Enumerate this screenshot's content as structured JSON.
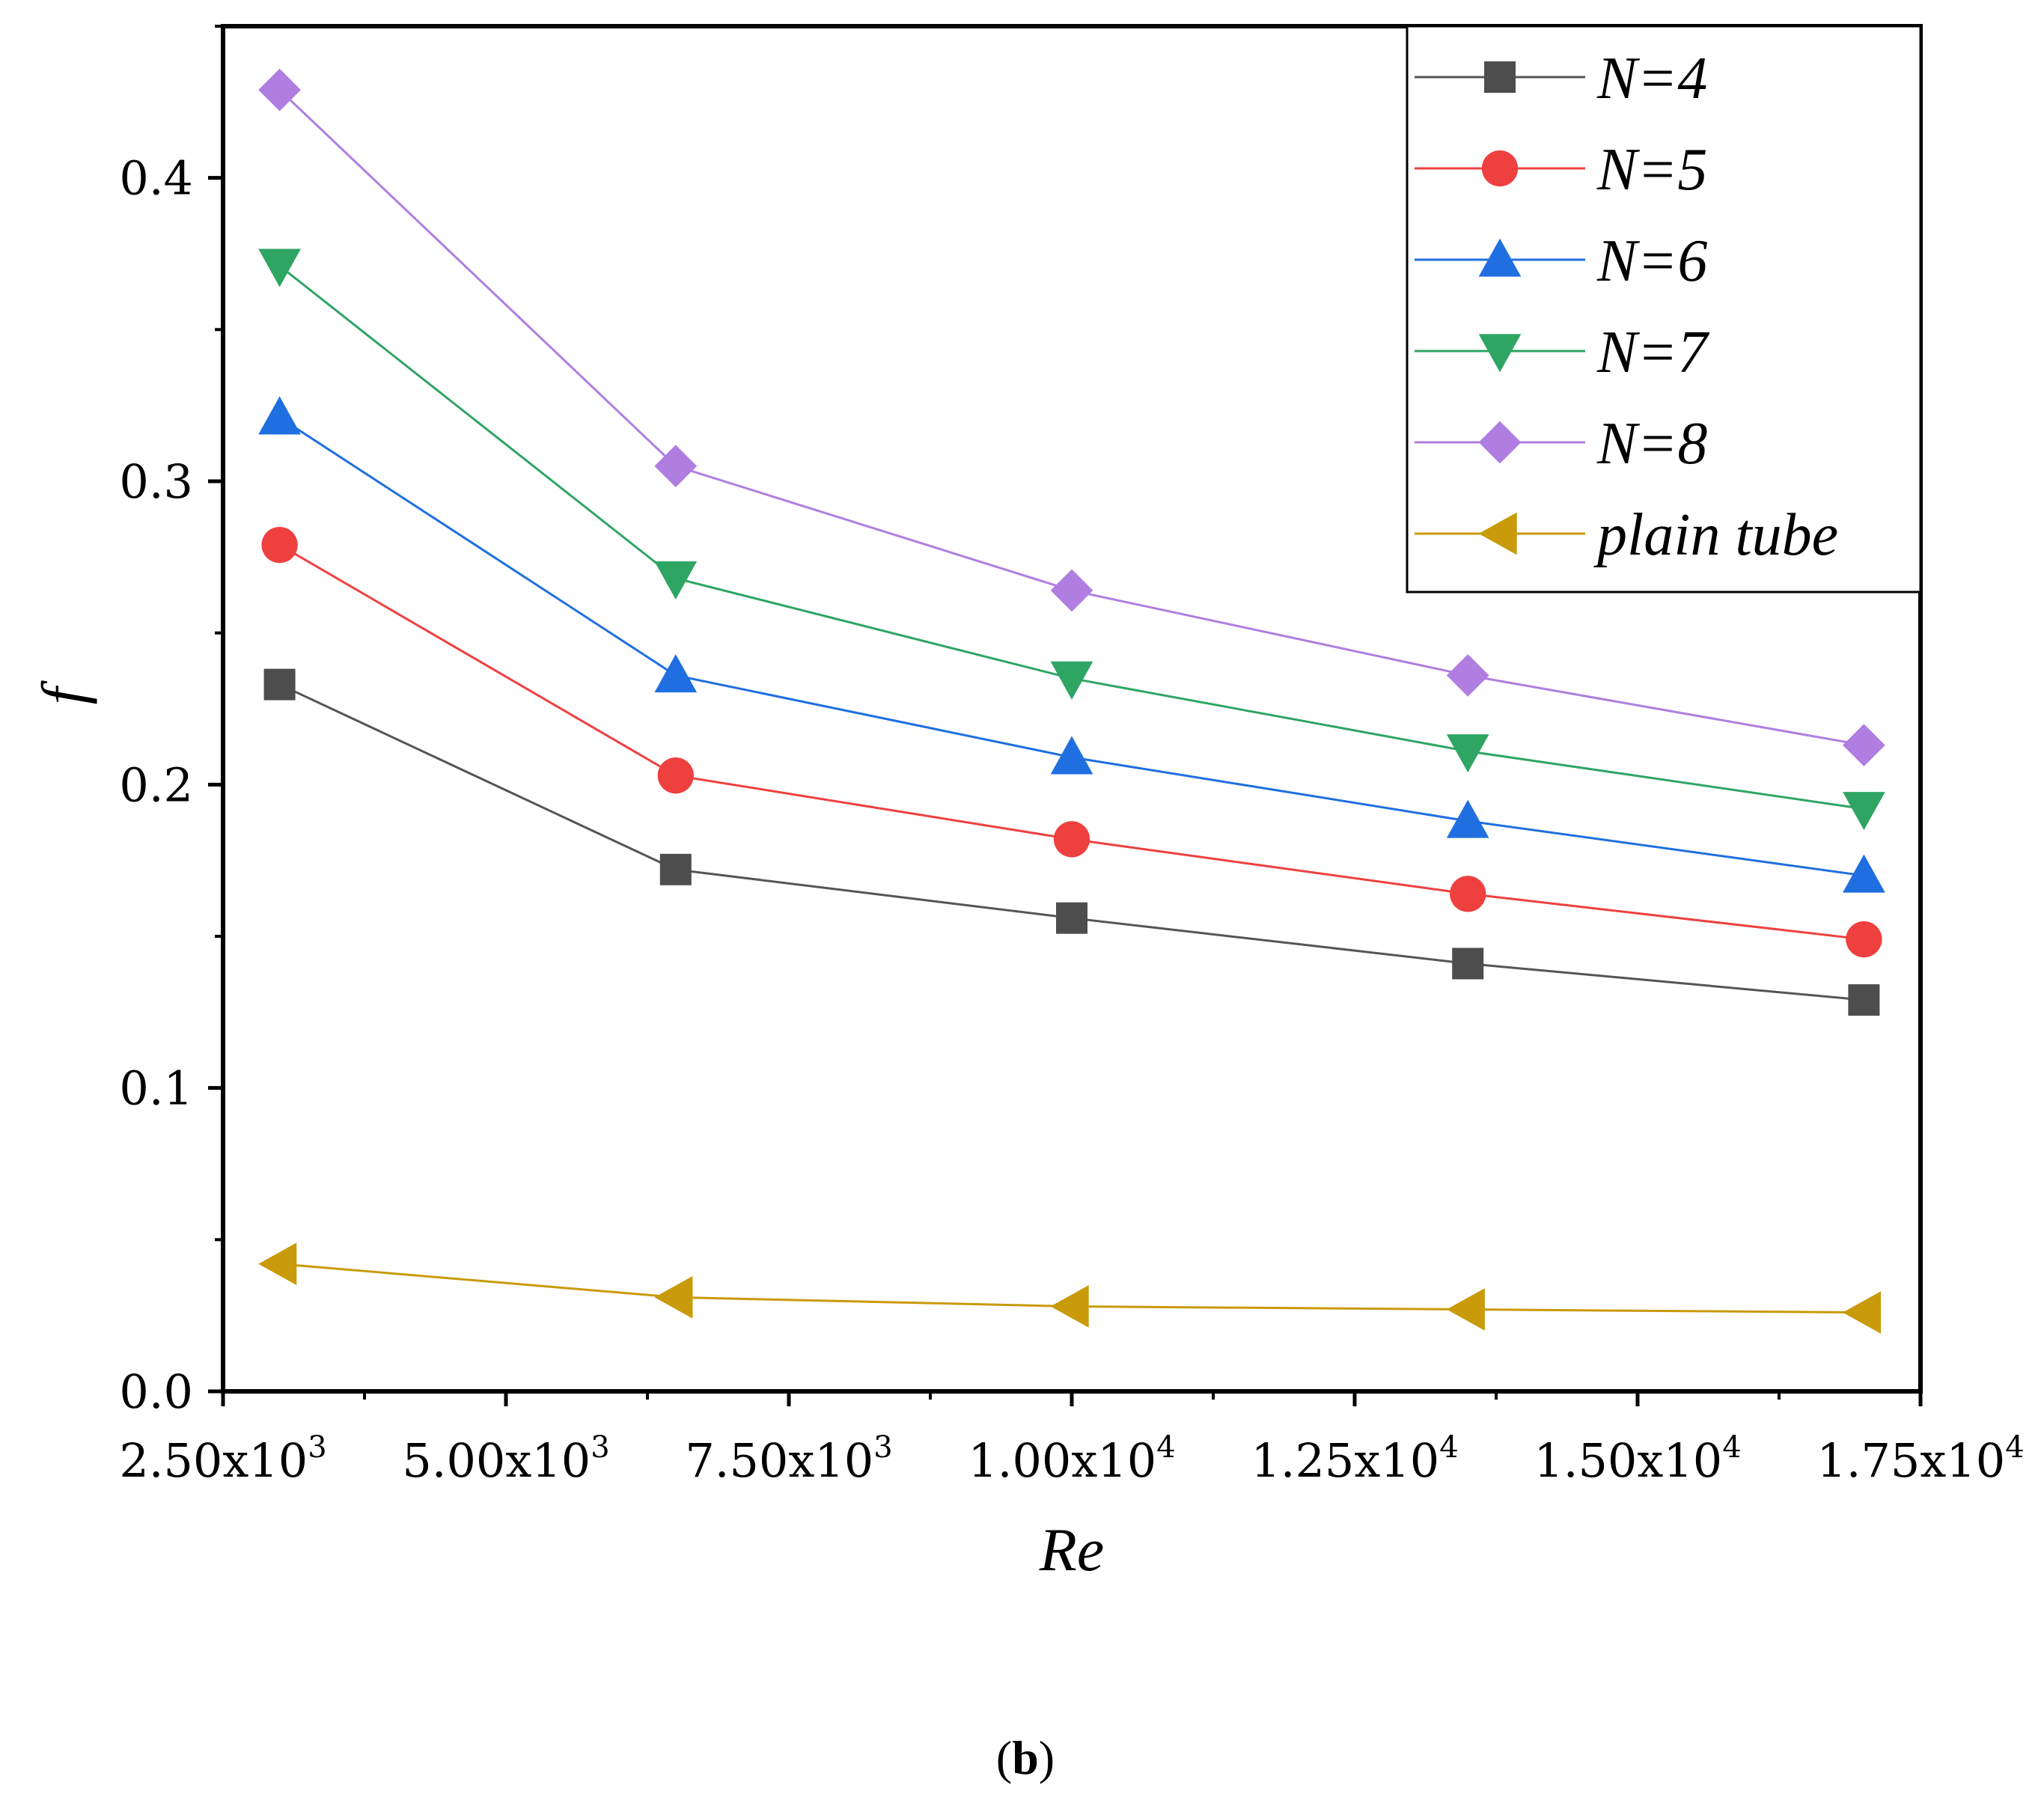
{
  "chart_data": {
    "type": "line",
    "xlabel": "Re",
    "ylabel": "f",
    "caption": {
      "open": "(",
      "letter": "b",
      "close": ")"
    },
    "xlim": [
      2500,
      17500
    ],
    "ylim": [
      0.0,
      0.45
    ],
    "x_ticks": [
      {
        "value": 2500,
        "mantissa": "2.50x10",
        "exp": "3"
      },
      {
        "value": 5000,
        "mantissa": "5.00x10",
        "exp": "3"
      },
      {
        "value": 7500,
        "mantissa": "7.50x10",
        "exp": "3"
      },
      {
        "value": 10000,
        "mantissa": "1.00x10",
        "exp": "4"
      },
      {
        "value": 12500,
        "mantissa": "1.25x10",
        "exp": "4"
      },
      {
        "value": 15000,
        "mantissa": "1.50x10",
        "exp": "4"
      },
      {
        "value": 17500,
        "mantissa": "1.75x10",
        "exp": "4"
      }
    ],
    "y_ticks": [
      {
        "value": 0.0,
        "label": "0.0"
      },
      {
        "value": 0.1,
        "label": "0.1"
      },
      {
        "value": 0.2,
        "label": "0.2"
      },
      {
        "value": 0.3,
        "label": "0.3"
      },
      {
        "value": 0.4,
        "label": "0.4"
      }
    ],
    "x": [
      3000,
      6500,
      10000,
      13500,
      17000
    ],
    "legend_position": "top-right",
    "grid": false,
    "series": [
      {
        "name": "N=4",
        "marker": "square",
        "color": "#4d4d4d",
        "line_color": "#555555",
        "values": [
          0.233,
          0.172,
          0.156,
          0.141,
          0.129
        ]
      },
      {
        "name": "N=5",
        "marker": "circle",
        "color": "#ef4040",
        "line_color": "#ef4040",
        "values": [
          0.279,
          0.203,
          0.182,
          0.164,
          0.149
        ]
      },
      {
        "name": "N=6",
        "marker": "triangle-up",
        "color": "#1f6fe0",
        "line_color": "#1f6fe0",
        "values": [
          0.321,
          0.236,
          0.209,
          0.188,
          0.17
        ]
      },
      {
        "name": "N=7",
        "marker": "triangle-down",
        "color": "#2fa564",
        "line_color": "#2fa564",
        "values": [
          0.371,
          0.268,
          0.235,
          0.211,
          0.192
        ]
      },
      {
        "name": "N=8",
        "marker": "diamond",
        "color": "#b07ee0",
        "line_color": "#b07ee0",
        "values": [
          0.429,
          0.305,
          0.264,
          0.236,
          0.213
        ]
      },
      {
        "name": "plain tube",
        "marker": "triangle-left",
        "color": "#c99a0a",
        "line_color": "#c99a0a",
        "values": [
          0.042,
          0.031,
          0.028,
          0.027,
          0.026
        ]
      }
    ]
  }
}
